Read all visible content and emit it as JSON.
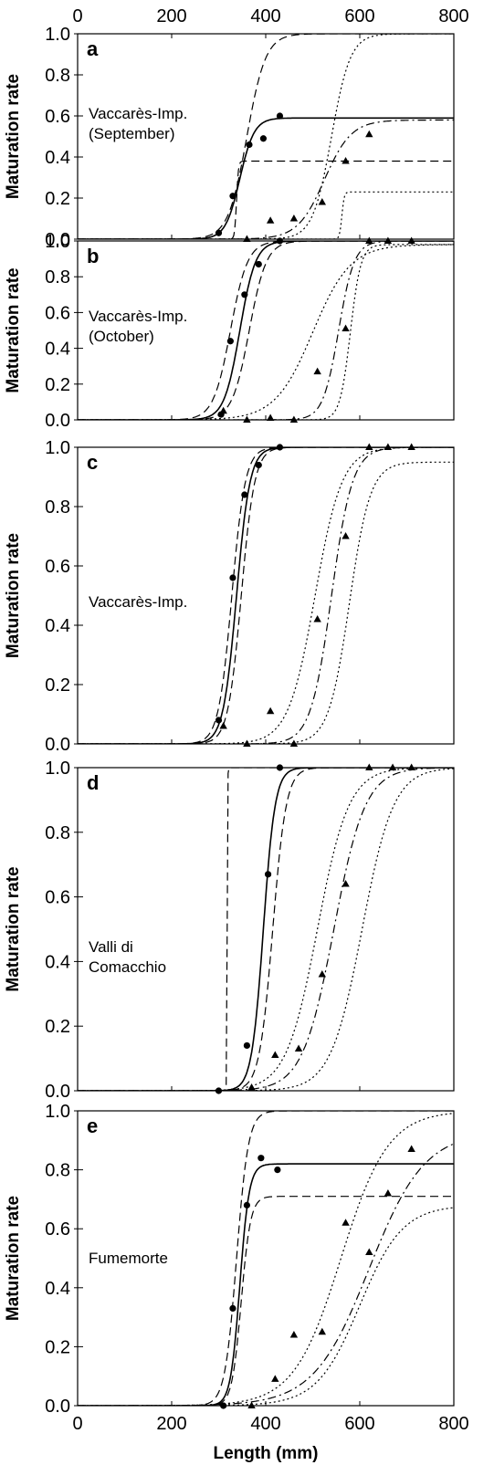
{
  "figure": {
    "ylabel": "Maturation rate",
    "xlabel": "Length (mm)",
    "top_ticks": [
      "0",
      "200",
      "400",
      "600",
      "800"
    ],
    "bottom_ticks": [
      "0",
      "200",
      "400",
      "600",
      "800"
    ]
  },
  "chart_data": [
    {
      "type": "line",
      "panel": "a",
      "site_label": [
        "Vaccarès-Imp.",
        "(September)"
      ],
      "xlim": [
        0,
        800
      ],
      "ylim": [
        0,
        1.0
      ],
      "yticks": [
        "0.0",
        "0.2",
        "0.4",
        "0.6",
        "0.8",
        "1.0"
      ],
      "series": [
        {
          "style": "solid",
          "curve": {
            "L50": 345,
            "k": 0.065,
            "asym": 0.59
          }
        },
        {
          "style": "dashed",
          "curve": {
            "L50": 360,
            "k": 0.05,
            "asym": 1.0
          }
        },
        {
          "style": "dashed",
          "curve": {
            "L50": 338,
            "k": 0.5,
            "asym": 0.38
          }
        },
        {
          "style": "dashdot",
          "curve": {
            "L50": 525,
            "k": 0.035,
            "asym": 0.58
          }
        },
        {
          "style": "dotted",
          "curve": {
            "L50": 540,
            "k": 0.05,
            "asym": 1.0
          }
        },
        {
          "style": "dotted",
          "curve": {
            "L50": 562,
            "k": 0.4,
            "asym": 0.23
          }
        }
      ],
      "points": {
        "circles": [
          [
            300,
            0.03
          ],
          [
            330,
            0.21
          ],
          [
            365,
            0.46
          ],
          [
            395,
            0.49
          ],
          [
            430,
            0.6
          ]
        ],
        "triangles": [
          [
            360,
            0.0
          ],
          [
            410,
            0.09
          ],
          [
            460,
            0.1
          ],
          [
            520,
            0.18
          ],
          [
            570,
            0.38
          ],
          [
            620,
            0.51
          ]
        ]
      }
    },
    {
      "type": "line",
      "panel": "b",
      "site_label": [
        "Vaccarès-Imp.",
        "(October)"
      ],
      "xlim": [
        0,
        800
      ],
      "ylim": [
        0,
        1.0
      ],
      "yticks": [
        "0.0",
        "0.2",
        "0.4",
        "0.6",
        "0.8",
        "1.0"
      ],
      "series": [
        {
          "style": "solid",
          "curve": {
            "L50": 345,
            "k": 0.06,
            "asym": 1.0
          }
        },
        {
          "style": "dashed",
          "curve": {
            "L50": 325,
            "k": 0.055,
            "asym": 1.0
          }
        },
        {
          "style": "dashed",
          "curve": {
            "L50": 365,
            "k": 0.055,
            "asym": 1.0
          }
        },
        {
          "style": "dashdot",
          "curve": {
            "L50": 555,
            "k": 0.06,
            "asym": 1.0
          }
        },
        {
          "style": "dotted",
          "curve": {
            "L50": 500,
            "k": 0.025,
            "asym": 0.98
          }
        },
        {
          "style": "dotted",
          "curve": {
            "L50": 580,
            "k": 0.09,
            "asym": 0.98
          }
        }
      ],
      "points": {
        "circles": [
          [
            305,
            0.03
          ],
          [
            325,
            0.44
          ],
          [
            355,
            0.7
          ],
          [
            385,
            0.87
          ],
          [
            430,
            1.0
          ]
        ],
        "triangles": [
          [
            310,
            0.05
          ],
          [
            360,
            0.0
          ],
          [
            410,
            0.01
          ],
          [
            460,
            0.0
          ],
          [
            510,
            0.27
          ],
          [
            570,
            0.51
          ],
          [
            620,
            1.0
          ],
          [
            660,
            1.0
          ],
          [
            710,
            1.0
          ]
        ]
      }
    },
    {
      "type": "line",
      "panel": "c",
      "site_label": [
        "Vaccarès-Imp."
      ],
      "xlim": [
        0,
        800
      ],
      "ylim": [
        0,
        1.0
      ],
      "yticks": [
        "0.0",
        "0.2",
        "0.4",
        "0.6",
        "0.8",
        "1.0"
      ],
      "series": [
        {
          "style": "solid",
          "curve": {
            "L50": 338,
            "k": 0.07,
            "asym": 1.0
          }
        },
        {
          "style": "dashed",
          "curve": {
            "L50": 328,
            "k": 0.07,
            "asym": 1.0
          }
        },
        {
          "style": "dashed",
          "curve": {
            "L50": 348,
            "k": 0.07,
            "asym": 1.0
          }
        },
        {
          "style": "dashdot",
          "curve": {
            "L50": 540,
            "k": 0.045,
            "asym": 1.0
          }
        },
        {
          "style": "dotted",
          "curve": {
            "L50": 505,
            "k": 0.035,
            "asym": 1.0
          }
        },
        {
          "style": "dotted",
          "curve": {
            "L50": 578,
            "k": 0.045,
            "asym": 0.95
          }
        }
      ],
      "points": {
        "circles": [
          [
            300,
            0.08
          ],
          [
            330,
            0.56
          ],
          [
            355,
            0.84
          ],
          [
            385,
            0.94
          ],
          [
            430,
            1.0
          ]
        ],
        "triangles": [
          [
            310,
            0.06
          ],
          [
            360,
            0.0
          ],
          [
            410,
            0.11
          ],
          [
            460,
            0.0
          ],
          [
            510,
            0.42
          ],
          [
            570,
            0.7
          ],
          [
            620,
            1.0
          ],
          [
            660,
            1.0
          ],
          [
            710,
            1.0
          ]
        ]
      }
    },
    {
      "type": "line",
      "panel": "d",
      "site_label": [
        "Valli di",
        "Comacchio"
      ],
      "xlim": [
        0,
        800
      ],
      "ylim": [
        0,
        1.0
      ],
      "yticks": [
        "0.0",
        "0.2",
        "0.4",
        "0.6",
        "0.8",
        "1.0"
      ],
      "series": [
        {
          "style": "solid",
          "curve": {
            "L50": 395,
            "k": 0.08,
            "asym": 1.0
          }
        },
        {
          "style": "dashed",
          "curve": {
            "L50": 318,
            "k": 2.0,
            "asym": 1.0
          }
        },
        {
          "style": "dashed",
          "curve": {
            "L50": 415,
            "k": 0.07,
            "asym": 1.0
          }
        },
        {
          "style": "dashdot",
          "curve": {
            "L50": 545,
            "k": 0.03,
            "asym": 1.0
          }
        },
        {
          "style": "dotted",
          "curve": {
            "L50": 510,
            "k": 0.03,
            "asym": 1.0
          }
        },
        {
          "style": "dotted",
          "curve": {
            "L50": 605,
            "k": 0.03,
            "asym": 1.0
          }
        }
      ],
      "points": {
        "circles": [
          [
            300,
            0.0
          ],
          [
            360,
            0.14
          ],
          [
            405,
            0.67
          ],
          [
            430,
            1.0
          ]
        ],
        "triangles": [
          [
            370,
            0.01
          ],
          [
            420,
            0.11
          ],
          [
            470,
            0.13
          ],
          [
            520,
            0.36
          ],
          [
            570,
            0.64
          ],
          [
            620,
            1.0
          ],
          [
            670,
            1.0
          ],
          [
            710,
            1.0
          ]
        ]
      }
    },
    {
      "type": "line",
      "panel": "e",
      "site_label": [
        "Fumemorte"
      ],
      "xlim": [
        0,
        800
      ],
      "ylim": [
        0,
        1.0
      ],
      "yticks": [
        "0.0",
        "0.2",
        "0.4",
        "0.6",
        "0.8",
        "1.0"
      ],
      "series": [
        {
          "style": "solid",
          "curve": {
            "L50": 345,
            "k": 0.1,
            "asym": 0.82
          }
        },
        {
          "style": "dashed",
          "curve": {
            "L50": 338,
            "k": 0.08,
            "asym": 1.0
          }
        },
        {
          "style": "dashed",
          "curve": {
            "L50": 348,
            "k": 0.1,
            "asym": 0.71
          }
        },
        {
          "style": "dashdot",
          "curve": {
            "L50": 620,
            "k": 0.017,
            "asym": 0.93
          }
        },
        {
          "style": "dotted",
          "curve": {
            "L50": 560,
            "k": 0.02,
            "asym": 1.0
          }
        },
        {
          "style": "dotted",
          "curve": {
            "L50": 600,
            "k": 0.022,
            "asym": 0.68
          }
        }
      ],
      "points": {
        "circles": [
          [
            310,
            0.0
          ],
          [
            330,
            0.33
          ],
          [
            360,
            0.68
          ],
          [
            390,
            0.84
          ],
          [
            425,
            0.8
          ]
        ],
        "triangles": [
          [
            370,
            0.0
          ],
          [
            420,
            0.09
          ],
          [
            460,
            0.24
          ],
          [
            520,
            0.25
          ],
          [
            570,
            0.62
          ],
          [
            620,
            0.52
          ],
          [
            660,
            0.72
          ],
          [
            710,
            0.87
          ]
        ]
      }
    }
  ]
}
